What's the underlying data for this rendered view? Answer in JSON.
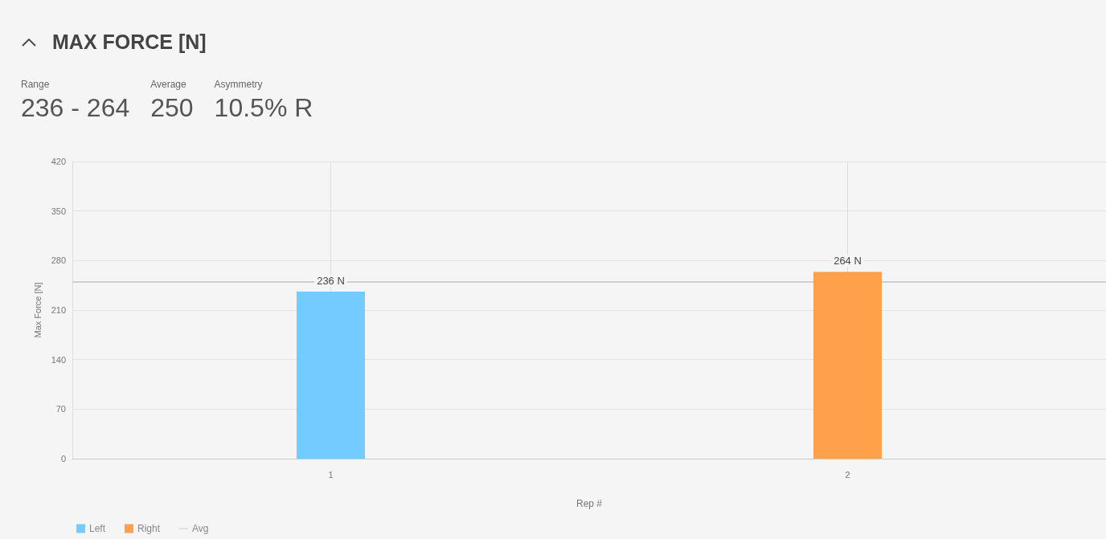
{
  "chart_data": {
    "type": "bar",
    "title": "MAX FORCE [N]",
    "annotations": [
      "Range",
      "236 - 264",
      "Average",
      "250",
      "Asymmetry",
      "10.5% R"
    ],
    "categories": [
      "1",
      "2"
    ],
    "series": [
      {
        "name": "Left",
        "color": "#74cbff",
        "values": [
          236,
          null
        ],
        "value_labels": [
          "236 N",
          null
        ]
      },
      {
        "name": "Right",
        "color": "#ffa04a",
        "values": [
          null,
          264
        ],
        "value_labels": [
          null,
          "264 N"
        ]
      }
    ],
    "xlabel": "Rep #",
    "ylabel": "Max Force [N]",
    "ylim": [
      0,
      420
    ],
    "yticks": [
      0,
      70,
      140,
      210,
      280,
      350,
      420
    ],
    "ref_lines": [
      {
        "axis": "y",
        "value": 250,
        "label": "Avg",
        "color": "#cfcfcf",
        "line_style": "solid"
      }
    ],
    "grid": true,
    "legend": "bottom left"
  }
}
